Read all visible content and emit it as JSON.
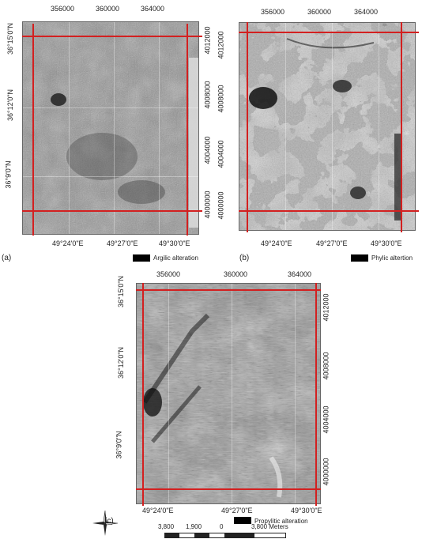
{
  "panels": [
    {
      "id": "a",
      "label": "(a)",
      "legend": "Argilic alteration",
      "top_ticks": [
        "356000",
        "360000",
        "364000"
      ],
      "bottom_ticks": [
        "49°24'0\"E",
        "49°27'0\"E",
        "49°30'0\"E"
      ],
      "left_ticks": [
        "36°15'0\"N",
        "36°12'0\"N",
        "36°9'0\"N"
      ],
      "right_ticks": [
        "4012000",
        "4008000",
        "4004000",
        "4000000"
      ],
      "tone": "medium-gray"
    },
    {
      "id": "b",
      "label": "(b)",
      "legend": "Phylic altertion",
      "top_ticks": [
        "356000",
        "360000",
        "364000"
      ],
      "bottom_ticks": [
        "49°24'0\"E",
        "49°27'0\"E",
        "49°30'0\"E"
      ],
      "left_ticks": [],
      "right_ticks": [
        "4012000",
        "4008000",
        "4004000",
        "4000000"
      ],
      "tone": "high-contrast"
    },
    {
      "id": "c",
      "label": "(c)",
      "legend": "Propylitic alteration",
      "top_ticks": [
        "356000",
        "360000",
        "364000"
      ],
      "bottom_ticks": [
        "49°24'0\"E",
        "49°27'0\"E",
        "49°30'0\"E"
      ],
      "left_ticks": [
        "36°15'0\"N",
        "36°12'0\"N",
        "36°9'0\"N"
      ],
      "right_ticks": [
        "4012000",
        "4008000",
        "4004000",
        "4000000"
      ],
      "tone": "dark-streaked"
    }
  ],
  "scale_bar": {
    "labels": [
      "3,800",
      "1,900",
      "0",
      "3,800 Meters"
    ]
  },
  "north_arrow": {
    "icon": "compass-rose-icon"
  },
  "colors": {
    "boundary": "#d32020",
    "frame": "#666666"
  }
}
